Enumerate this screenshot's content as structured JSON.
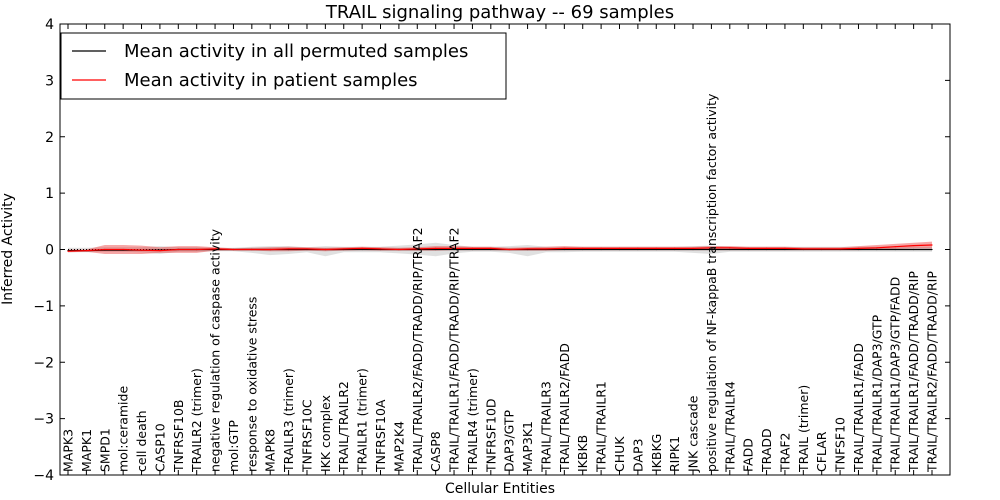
{
  "chart_data": {
    "type": "line",
    "title": "TRAIL signaling pathway -- 69 samples",
    "xlabel": "Cellular Entities",
    "ylabel": "Inferred Activity",
    "ylim": [
      -4,
      4
    ],
    "yticks": [
      -4,
      -3,
      -2,
      -1,
      0,
      1,
      2,
      3,
      4
    ],
    "ytick_labels": [
      "−4",
      "−3",
      "−2",
      "−1",
      "0",
      "1",
      "2",
      "3",
      "4"
    ],
    "grid": false,
    "legend_position": "top-left",
    "categories": [
      "MAPK3",
      "MAPK1",
      "SMPD1",
      "mol:ceramide",
      "cell death",
      "CASP10",
      "TNFRSF10B",
      "TRAILR2 (trimer)",
      "negative regulation of caspase activity",
      "mol:GTP",
      "response to oxidative stress",
      "MAPK8",
      "TRAILR3 (trimer)",
      "TNFRSF10C",
      "IKK complex",
      "TRAIL/TRAILR2",
      "TRAILR1 (trimer)",
      "TNFRSF10A",
      "MAP2K4",
      "TRAIL/TRAILR2/FADD/TRADD/RIP/TRAF2",
      "CASP8",
      "TRAIL/TRAILR1/FADD/TRADD/RIP/TRAF2",
      "TRAILR4 (trimer)",
      "TNFRSF10D",
      "DAP3/GTP",
      "MAP3K1",
      "TRAIL/TRAILR3",
      "TRAIL/TRAILR2/FADD",
      "IKBKB",
      "TRAIL/TRAILR1",
      "CHUK",
      "DAP3",
      "IKBKG",
      "RIPK1",
      "JNK cascade",
      "positive regulation of NF-kappaB transcription factor activity",
      "TRAIL/TRAILR4",
      "FADD",
      "TRADD",
      "TRAF2",
      "TRAIL (trimer)",
      "CFLAR",
      "TNFSF10",
      "TRAIL/TRAILR1/FADD",
      "TRAIL/TRAILR1/DAP3/GTP",
      "TRAIL/TRAILR1/DAP3/GTP/FADD",
      "TRAIL/TRAILR1/FADD/TRADD/RIP",
      "TRAIL/TRAILR2/FADD/TRADD/RIP"
    ],
    "series": [
      {
        "name": "Mean activity in all permuted samples",
        "color": "#000000",
        "values": [
          -0.02,
          -0.02,
          -0.01,
          -0.01,
          -0.01,
          -0.01,
          0.0,
          0.0,
          0.0,
          0.0,
          0.0,
          0.0,
          0.0,
          0.0,
          0.0,
          0.0,
          0.0,
          0.0,
          0.0,
          0.0,
          0.0,
          0.0,
          0.0,
          0.0,
          0.0,
          0.0,
          0.0,
          0.0,
          0.0,
          0.0,
          0.0,
          0.0,
          0.0,
          0.0,
          0.0,
          0.0,
          0.0,
          0.0,
          0.0,
          0.0,
          0.0,
          0.0,
          0.0,
          0.0,
          0.0,
          0.0,
          0.0,
          0.0
        ],
        "band_low": [
          -0.05,
          -0.05,
          -0.04,
          -0.04,
          -0.05,
          -0.08,
          -0.04,
          -0.04,
          -0.03,
          -0.03,
          -0.06,
          -0.1,
          -0.08,
          -0.05,
          -0.12,
          -0.05,
          -0.05,
          -0.05,
          -0.07,
          -0.09,
          -0.12,
          -0.07,
          -0.04,
          -0.04,
          -0.06,
          -0.12,
          -0.05,
          -0.05,
          -0.04,
          -0.04,
          -0.04,
          -0.04,
          -0.04,
          -0.04,
          -0.06,
          -0.08,
          -0.04,
          -0.04,
          -0.04,
          -0.04,
          -0.04,
          -0.04,
          -0.04,
          -0.04,
          -0.04,
          -0.04,
          -0.04,
          -0.04
        ],
        "band_high": [
          0.03,
          0.03,
          0.04,
          0.04,
          0.04,
          0.06,
          0.04,
          0.04,
          0.03,
          0.03,
          0.05,
          0.06,
          0.06,
          0.04,
          0.06,
          0.05,
          0.05,
          0.05,
          0.07,
          0.09,
          0.12,
          0.08,
          0.05,
          0.05,
          0.06,
          0.08,
          0.05,
          0.05,
          0.05,
          0.05,
          0.05,
          0.05,
          0.05,
          0.05,
          0.06,
          0.07,
          0.05,
          0.05,
          0.05,
          0.05,
          0.05,
          0.05,
          0.05,
          0.05,
          0.05,
          0.05,
          0.05,
          0.05
        ]
      },
      {
        "name": "Mean activity in patient samples",
        "color": "#ff0000",
        "values": [
          -0.03,
          -0.02,
          0.0,
          0.0,
          -0.01,
          -0.02,
          0.0,
          0.0,
          0.01,
          0.0,
          0.0,
          0.0,
          0.01,
          0.01,
          0.0,
          0.01,
          0.02,
          0.01,
          0.0,
          0.01,
          0.02,
          0.02,
          0.02,
          0.02,
          0.0,
          0.01,
          0.01,
          0.02,
          0.02,
          0.02,
          0.02,
          0.02,
          0.02,
          0.02,
          0.02,
          0.03,
          0.03,
          0.02,
          0.02,
          0.02,
          0.01,
          0.01,
          0.01,
          0.02,
          0.03,
          0.05,
          0.07,
          0.08
        ],
        "band_low": [
          -0.05,
          -0.04,
          -0.08,
          -0.08,
          -0.08,
          -0.06,
          -0.06,
          -0.06,
          -0.02,
          -0.02,
          -0.02,
          -0.03,
          -0.03,
          -0.02,
          -0.03,
          -0.02,
          -0.01,
          -0.02,
          -0.02,
          -0.02,
          -0.02,
          -0.01,
          -0.01,
          -0.01,
          -0.02,
          -0.02,
          -0.02,
          -0.01,
          -0.01,
          -0.01,
          -0.01,
          -0.01,
          -0.01,
          -0.01,
          -0.01,
          -0.01,
          -0.01,
          -0.01,
          -0.01,
          -0.01,
          -0.01,
          -0.01,
          -0.01,
          -0.01,
          0.0,
          0.01,
          0.02,
          0.02
        ],
        "band_high": [
          0.0,
          0.0,
          0.08,
          0.08,
          0.07,
          0.04,
          0.06,
          0.06,
          0.04,
          0.02,
          0.03,
          0.04,
          0.05,
          0.04,
          0.03,
          0.04,
          0.05,
          0.04,
          0.03,
          0.04,
          0.06,
          0.06,
          0.05,
          0.05,
          0.03,
          0.04,
          0.05,
          0.06,
          0.05,
          0.05,
          0.05,
          0.05,
          0.05,
          0.05,
          0.05,
          0.06,
          0.06,
          0.05,
          0.05,
          0.05,
          0.04,
          0.04,
          0.04,
          0.06,
          0.08,
          0.1,
          0.12,
          0.14
        ]
      }
    ]
  }
}
